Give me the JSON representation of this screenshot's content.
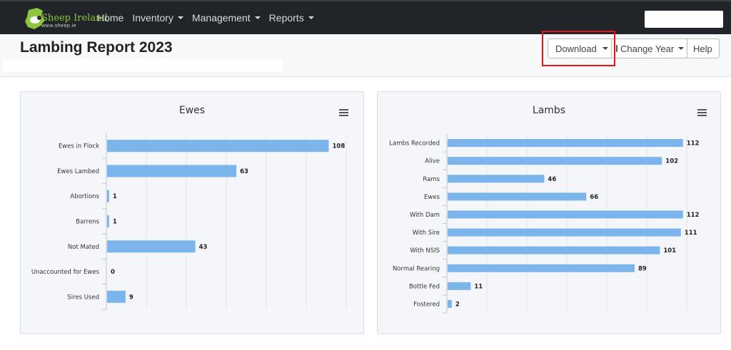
{
  "navbar": {
    "brand": "Sheep Ireland",
    "brand_sub": "www.sheep.ie",
    "items": [
      {
        "label": "Home",
        "dropdown": false
      },
      {
        "label": "Inventory",
        "dropdown": true
      },
      {
        "label": "Management",
        "dropdown": true
      },
      {
        "label": "Reports",
        "dropdown": true
      }
    ],
    "search_value": ""
  },
  "header": {
    "title": "Lambing Report 2023",
    "buttons": {
      "download": "Download",
      "change_year": "Change Year",
      "help": "Help"
    }
  },
  "colors": {
    "bar": "#7cb5ec",
    "navbar": "#212529",
    "highlight": "#e3161c"
  },
  "chart_data": [
    {
      "type": "bar",
      "orientation": "horizontal",
      "title": "Ewes",
      "categories": [
        "Ewes in Flock",
        "Ewes Lambed",
        "Abortions",
        "Barrens",
        "Not Mated",
        "Unaccounted for Ewes",
        "Sires Used"
      ],
      "values": [
        108,
        63,
        1,
        1,
        43,
        0,
        9
      ],
      "xlim": [
        0,
        120
      ],
      "grid": true,
      "data_labels": true
    },
    {
      "type": "bar",
      "orientation": "horizontal",
      "title": "Lambs",
      "categories": [
        "Lambs Recorded",
        "Alive",
        "Rams",
        "Ewes",
        "With Dam",
        "With Sire",
        "With NSIS",
        "Normal Rearing",
        "Bottle Fed",
        "Fostered"
      ],
      "values": [
        112,
        102,
        46,
        66,
        112,
        111,
        101,
        89,
        11,
        2
      ],
      "xlim": [
        0,
        125
      ],
      "grid": true,
      "data_labels": true
    }
  ]
}
